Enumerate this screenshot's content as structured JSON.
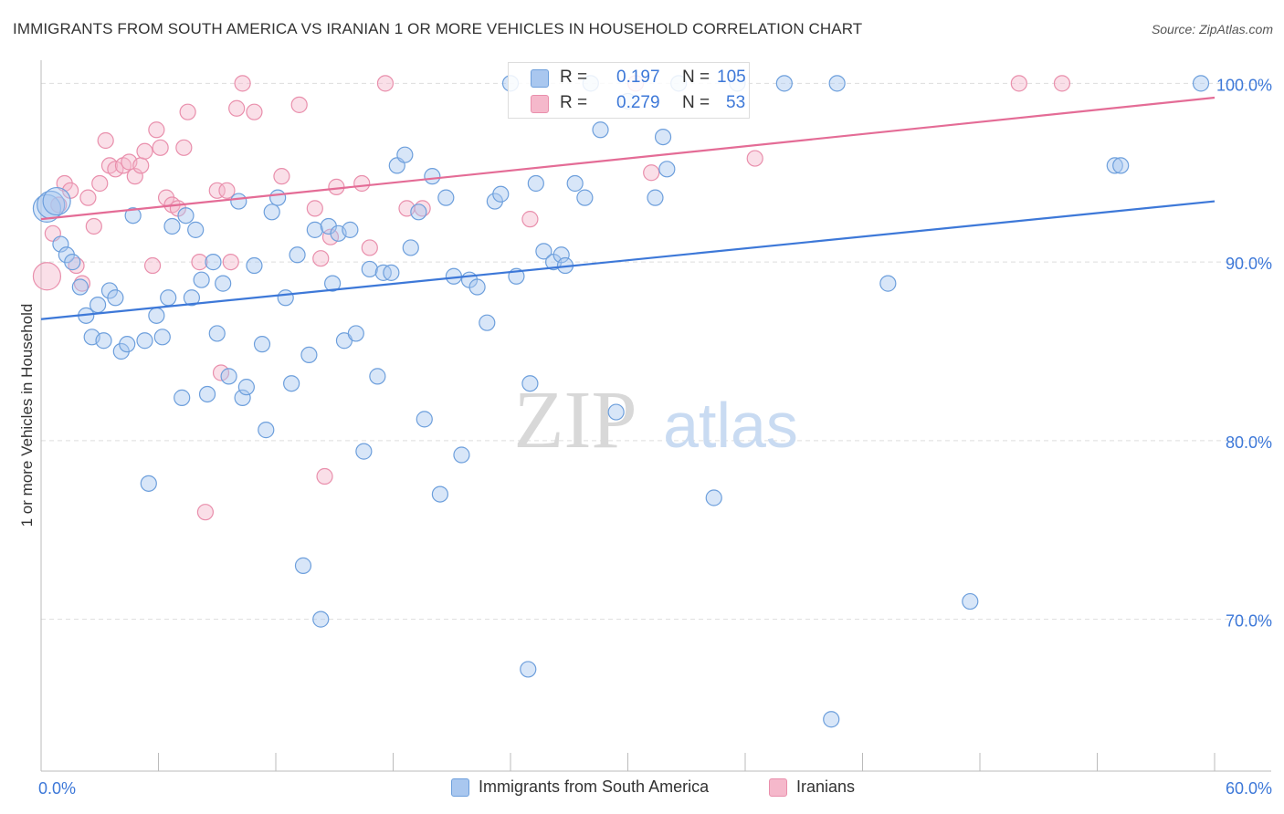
{
  "header": {
    "title": "IMMIGRANTS FROM SOUTH AMERICA VS IRANIAN 1 OR MORE VEHICLES IN HOUSEHOLD CORRELATION CHART",
    "source": "Source: ZipAtlas.com"
  },
  "watermark": {
    "zip": "ZIP",
    "atlas": "atlas"
  },
  "stats": {
    "r_label": "R =",
    "n_label": "N =",
    "rows": [
      {
        "r": "0.197",
        "n": "105",
        "color": "#a9c7ef"
      },
      {
        "r": "0.279",
        "n": "53",
        "color": "#f5b8cb"
      }
    ]
  },
  "colors": {
    "blue_fill": "#a9c7ef",
    "blue_stroke": "#6d9fdc",
    "blue_line": "#3d78d8",
    "pink_fill": "#f5b8cb",
    "pink_stroke": "#e98fac",
    "pink_line": "#e46c96",
    "tick_text": "#3d78d8",
    "grid": "#dddddd"
  },
  "chart_data": {
    "type": "scatter",
    "title": "IMMIGRANTS FROM SOUTH AMERICA VS IRANIAN 1 OR MORE VEHICLES IN HOUSEHOLD CORRELATION CHART",
    "xlabel": "",
    "ylabel": "1 or more Vehicles in Household",
    "xlim": [
      0,
      60
    ],
    "ylim": [
      61.5,
      101.5
    ],
    "x_tick_labels": [
      "0.0%",
      "60.0%"
    ],
    "y_ticks": [
      70,
      80,
      90,
      100
    ],
    "y_tick_labels": [
      "70.0%",
      "80.0%",
      "90.0%",
      "100.0%"
    ],
    "grid": true,
    "legend_position": "bottom",
    "series": [
      {
        "name": "Immigrants from South America",
        "color": "#a9c7ef",
        "trend": {
          "x0": 0,
          "y0": 86.8,
          "x1": 60,
          "y1": 93.4
        },
        "points": [
          [
            0.3,
            93.0,
            1
          ],
          [
            0.5,
            93.2,
            1
          ],
          [
            0.8,
            93.4,
            1
          ],
          [
            1.0,
            91.0,
            0
          ],
          [
            1.3,
            90.4,
            0
          ],
          [
            1.6,
            90.0,
            0
          ],
          [
            2.0,
            88.6,
            0
          ],
          [
            2.3,
            87.0,
            0
          ],
          [
            2.6,
            85.8,
            0
          ],
          [
            2.9,
            87.6,
            0
          ],
          [
            3.2,
            85.6,
            0
          ],
          [
            3.5,
            88.4,
            0
          ],
          [
            3.8,
            88.0,
            0
          ],
          [
            4.1,
            85.0,
            0
          ],
          [
            4.4,
            85.4,
            0
          ],
          [
            4.7,
            92.6,
            0
          ],
          [
            5.3,
            85.6,
            0
          ],
          [
            5.5,
            77.6,
            0
          ],
          [
            5.9,
            87.0,
            0
          ],
          [
            6.2,
            85.8,
            0
          ],
          [
            6.5,
            88.0,
            0
          ],
          [
            6.7,
            92.0,
            0
          ],
          [
            7.2,
            82.4,
            0
          ],
          [
            7.4,
            92.6,
            0
          ],
          [
            7.7,
            88.0,
            0
          ],
          [
            7.9,
            91.8,
            0
          ],
          [
            8.2,
            89.0,
            0
          ],
          [
            8.5,
            82.6,
            0
          ],
          [
            8.8,
            90.0,
            0
          ],
          [
            9.0,
            86.0,
            0
          ],
          [
            9.3,
            88.8,
            0
          ],
          [
            9.6,
            83.6,
            0
          ],
          [
            10.1,
            93.4,
            0
          ],
          [
            10.3,
            82.4,
            0
          ],
          [
            10.5,
            83.0,
            0
          ],
          [
            10.9,
            89.8,
            0
          ],
          [
            11.3,
            85.4,
            0
          ],
          [
            11.5,
            80.6,
            0
          ],
          [
            11.8,
            92.8,
            0
          ],
          [
            12.1,
            93.6,
            0
          ],
          [
            12.5,
            88.0,
            0
          ],
          [
            12.8,
            83.2,
            0
          ],
          [
            13.1,
            90.4,
            0
          ],
          [
            13.4,
            73.0,
            0
          ],
          [
            13.7,
            84.8,
            0
          ],
          [
            14.0,
            91.8,
            0
          ],
          [
            14.3,
            70.0,
            0
          ],
          [
            14.7,
            92.0,
            0
          ],
          [
            14.9,
            88.8,
            0
          ],
          [
            15.2,
            91.6,
            0
          ],
          [
            15.5,
            85.6,
            0
          ],
          [
            15.8,
            91.8,
            0
          ],
          [
            16.1,
            86.0,
            0
          ],
          [
            16.5,
            79.4,
            0
          ],
          [
            16.8,
            89.6,
            0
          ],
          [
            17.2,
            83.6,
            0
          ],
          [
            17.5,
            89.4,
            0
          ],
          [
            17.9,
            89.4,
            0
          ],
          [
            18.2,
            95.4,
            0
          ],
          [
            18.6,
            96.0,
            0
          ],
          [
            18.9,
            90.8,
            0
          ],
          [
            19.3,
            92.8,
            0
          ],
          [
            19.6,
            81.2,
            0
          ],
          [
            20.0,
            94.8,
            0
          ],
          [
            20.4,
            77.0,
            0
          ],
          [
            20.7,
            93.6,
            0
          ],
          [
            21.1,
            89.2,
            0
          ],
          [
            21.5,
            79.2,
            0
          ],
          [
            21.9,
            89.0,
            0
          ],
          [
            22.3,
            88.6,
            0
          ],
          [
            22.8,
            86.6,
            0
          ],
          [
            23.2,
            93.4,
            0
          ],
          [
            23.5,
            93.8,
            0
          ],
          [
            24.0,
            100.0,
            0
          ],
          [
            24.3,
            89.2,
            0
          ],
          [
            24.9,
            67.2,
            0
          ],
          [
            25.0,
            83.2,
            0
          ],
          [
            25.3,
            94.4,
            0
          ],
          [
            25.7,
            90.6,
            0
          ],
          [
            26.2,
            90.0,
            0
          ],
          [
            26.6,
            90.4,
            0
          ],
          [
            26.8,
            89.8,
            0
          ],
          [
            27.3,
            94.4,
            0
          ],
          [
            27.8,
            93.6,
            0
          ],
          [
            28.1,
            100.0,
            0
          ],
          [
            28.6,
            97.4,
            0
          ],
          [
            29.4,
            81.6,
            0
          ],
          [
            30.0,
            99.0,
            0
          ],
          [
            31.4,
            93.6,
            0
          ],
          [
            31.8,
            97.0,
            0
          ],
          [
            32.0,
            95.2,
            0
          ],
          [
            32.6,
            100.0,
            0
          ],
          [
            34.4,
            76.8,
            0
          ],
          [
            35.6,
            100.0,
            0
          ],
          [
            38.0,
            100.0,
            0
          ],
          [
            40.4,
            64.4,
            0
          ],
          [
            40.7,
            100.0,
            0
          ],
          [
            43.3,
            88.8,
            0
          ],
          [
            47.5,
            71.0,
            0
          ],
          [
            54.9,
            95.4,
            0
          ],
          [
            55.2,
            95.4,
            0
          ],
          [
            59.3,
            100.0,
            0
          ]
        ]
      },
      {
        "name": "Iranians",
        "color": "#f5b8cb",
        "trend": {
          "x0": 0,
          "y0": 92.4,
          "x1": 60,
          "y1": 99.2
        },
        "points": [
          [
            0.3,
            89.2,
            1
          ],
          [
            0.6,
            91.6,
            0
          ],
          [
            0.9,
            93.2,
            0
          ],
          [
            1.2,
            94.4,
            0
          ],
          [
            1.5,
            94.0,
            0
          ],
          [
            1.8,
            89.8,
            0
          ],
          [
            2.1,
            88.8,
            0
          ],
          [
            2.4,
            93.6,
            0
          ],
          [
            2.7,
            92.0,
            0
          ],
          [
            3.0,
            94.4,
            0
          ],
          [
            3.3,
            96.8,
            0
          ],
          [
            3.5,
            95.4,
            0
          ],
          [
            3.8,
            95.2,
            0
          ],
          [
            4.2,
            95.4,
            0
          ],
          [
            4.5,
            95.6,
            0
          ],
          [
            4.8,
            94.8,
            0
          ],
          [
            5.1,
            95.4,
            0
          ],
          [
            5.3,
            96.2,
            0
          ],
          [
            5.7,
            89.8,
            0
          ],
          [
            5.9,
            97.4,
            0
          ],
          [
            6.1,
            96.4,
            0
          ],
          [
            6.4,
            93.6,
            0
          ],
          [
            6.7,
            93.2,
            0
          ],
          [
            7.0,
            93.0,
            0
          ],
          [
            7.3,
            96.4,
            0
          ],
          [
            7.5,
            98.4,
            0
          ],
          [
            8.1,
            90.0,
            0
          ],
          [
            8.4,
            76.0,
            0
          ],
          [
            9.0,
            94.0,
            0
          ],
          [
            9.2,
            83.8,
            0
          ],
          [
            9.5,
            94.0,
            0
          ],
          [
            9.7,
            90.0,
            0
          ],
          [
            10.0,
            98.6,
            0
          ],
          [
            10.3,
            100.0,
            0
          ],
          [
            10.9,
            98.4,
            0
          ],
          [
            12.3,
            94.8,
            0
          ],
          [
            13.2,
            98.8,
            0
          ],
          [
            14.0,
            93.0,
            0
          ],
          [
            14.3,
            90.2,
            0
          ],
          [
            14.5,
            78.0,
            0
          ],
          [
            14.8,
            91.4,
            0
          ],
          [
            15.1,
            94.2,
            0
          ],
          [
            16.4,
            94.4,
            0
          ],
          [
            16.8,
            90.8,
            0
          ],
          [
            17.6,
            100.0,
            0
          ],
          [
            18.7,
            93.0,
            0
          ],
          [
            19.5,
            93.0,
            0
          ],
          [
            25.0,
            92.4,
            0
          ],
          [
            30.4,
            100.0,
            0
          ],
          [
            31.2,
            95.0,
            0
          ],
          [
            36.5,
            95.8,
            0
          ],
          [
            50.0,
            100.0,
            0
          ],
          [
            52.2,
            100.0,
            0
          ]
        ]
      }
    ]
  }
}
